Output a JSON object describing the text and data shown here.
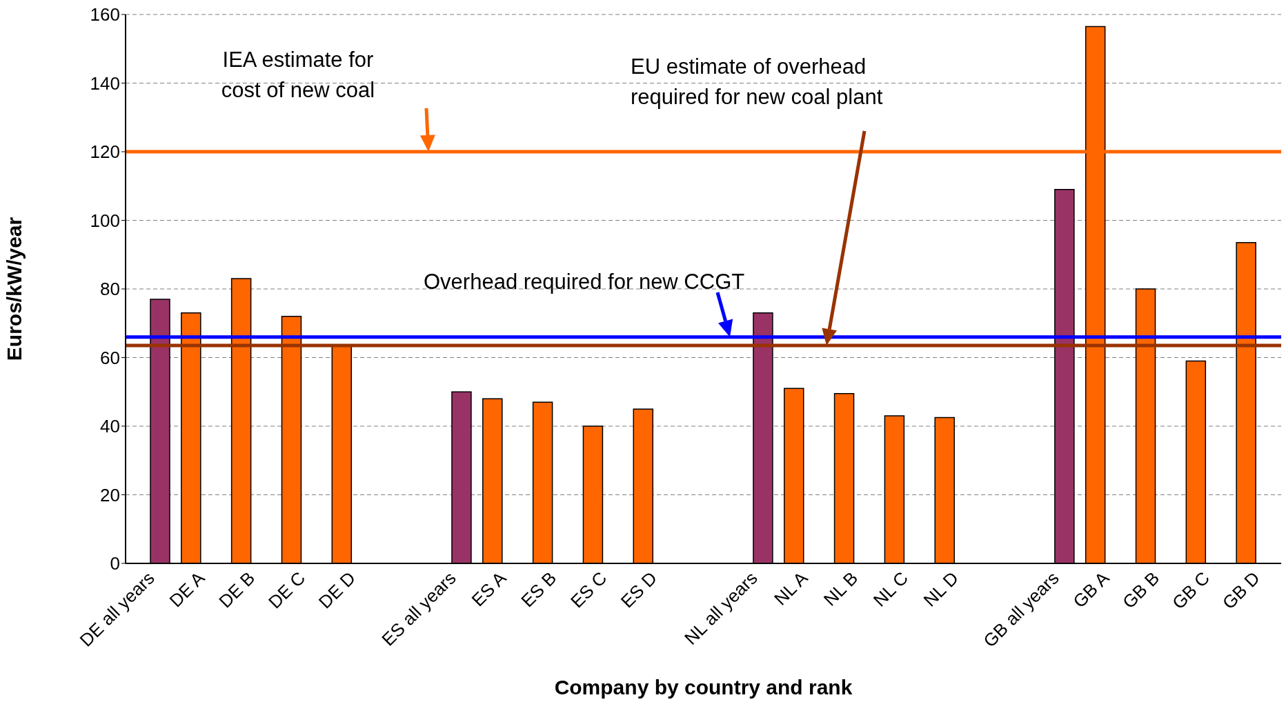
{
  "chart_data": {
    "type": "bar",
    "xlabel": "Company by country and rank",
    "ylabel": "Euros/kW/year",
    "categories": [
      "DE all years",
      "DE A",
      "DE B",
      "DE C",
      "DE D",
      null,
      "ES all years",
      "ES A",
      "ES B",
      "ES C",
      "ES D",
      null,
      "NL all years",
      "NL A",
      "NL B",
      "NL C",
      "NL D",
      null,
      "GB all years",
      "GB A",
      "GB B",
      "GB C",
      "GB D"
    ],
    "series": [
      {
        "color": "#ff6600",
        "values": [
          null,
          73,
          83,
          72,
          63.5,
          null,
          null,
          48,
          47,
          40,
          45,
          null,
          null,
          51,
          49.5,
          43,
          42.5,
          null,
          null,
          156.5,
          80,
          59,
          93.5
        ]
      },
      {
        "color": "#993366",
        "values": [
          77,
          null,
          null,
          null,
          null,
          null,
          50,
          null,
          null,
          null,
          null,
          null,
          73,
          null,
          null,
          null,
          null,
          null,
          109,
          null,
          null,
          null,
          null
        ]
      }
    ],
    "ylim": [
      0,
      160
    ],
    "yticks": [
      0,
      20,
      40,
      60,
      80,
      100,
      120,
      140,
      160
    ],
    "grid": "y",
    "legend": false,
    "ref_lines": [
      {
        "axis": "y",
        "value": 120,
        "color": "#ff6600"
      },
      {
        "axis": "y",
        "value": 66,
        "color": "#0000ff"
      },
      {
        "axis": "y",
        "value": 63.5,
        "color": "#993300"
      }
    ],
    "annotations": [
      {
        "text": "IEA estimate for cost of new coal",
        "y": 120
      },
      "EU estimate of overhead required for new coal plant",
      {
        "text": "Overhead required for new CCGT",
        "y": 66
      }
    ]
  }
}
